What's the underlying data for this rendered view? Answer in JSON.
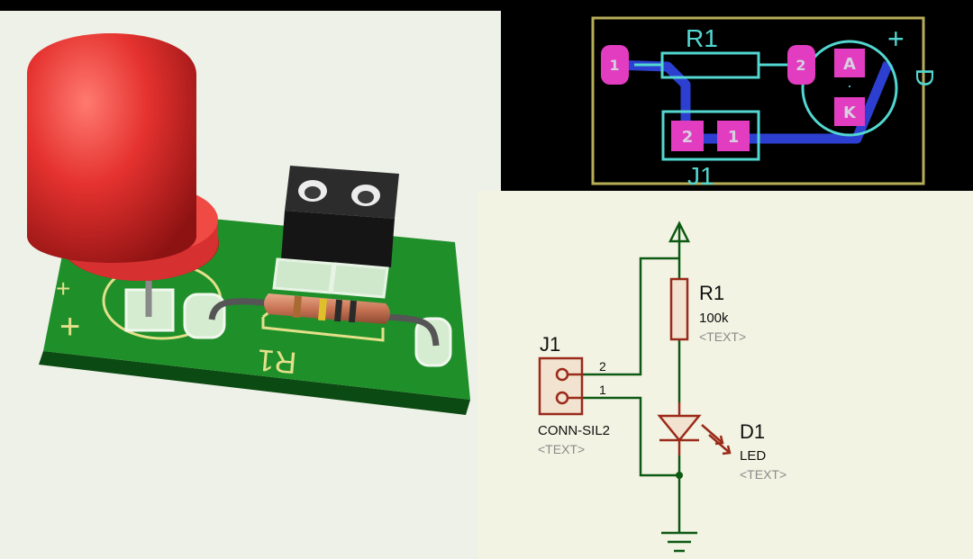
{
  "pcb_layout": {
    "resistor_ref": "R1",
    "connector_ref": "J1",
    "led_ref": "D",
    "plus_mark": "+",
    "r1_pad1": "1",
    "r1_pad2": "2",
    "j1_pad2": "2",
    "j1_pad1": "1",
    "led_anode": "A",
    "led_cathode": "K",
    "led_dot": "·",
    "colors": {
      "outline": "#b6ad57",
      "pad": "#e23cc0",
      "track": "#2c3fd0",
      "silk": "#52d7d1"
    }
  },
  "board_3d": {
    "resistor_silk": "R1",
    "plus_silk": "+",
    "led_polarity_silk": "+",
    "colors": {
      "board": "#1f8f2a",
      "led": "#e5322f",
      "silk": "#e4e08a"
    }
  },
  "schematic": {
    "j1_ref": "J1",
    "j1_value": "CONN-SIL2",
    "j1_text": "<TEXT>",
    "pin_2": "2",
    "pin_1": "1",
    "r1_ref": "R1",
    "r1_value": "100k",
    "r1_text": "<TEXT>",
    "d1_ref": "D1",
    "d1_value": "LED",
    "d1_text": "<TEXT>",
    "colors": {
      "wire": "#0d5a12",
      "component": "#9a2a1a",
      "fill": "#f1e3cf"
    }
  }
}
